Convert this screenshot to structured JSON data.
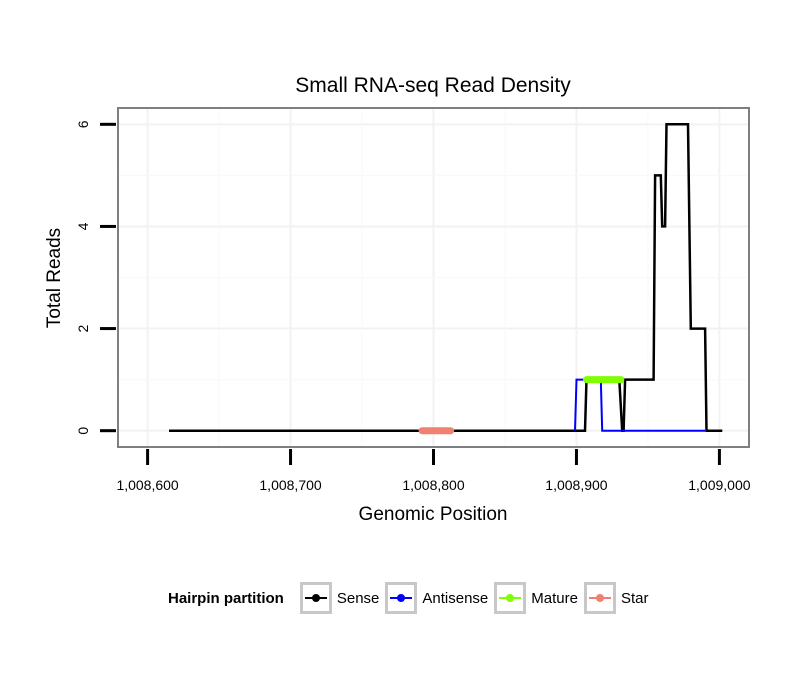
{
  "chart_data": {
    "type": "line",
    "title": "Small RNA-seq Read Density",
    "xlabel": "Genomic Position",
    "ylabel": "Total Reads",
    "xlim": [
      1008580,
      1009020
    ],
    "ylim": [
      -0.3,
      6.3
    ],
    "x_ticks": [
      1008600,
      1008700,
      1008800,
      1008900,
      1009000
    ],
    "x_tick_labels": [
      "1,008,600",
      "1,008,700",
      "1,008,800",
      "1,008,900",
      "1,009,000"
    ],
    "y_ticks": [
      0,
      2,
      4,
      6
    ],
    "y_tick_labels": [
      "0",
      "2",
      "4",
      "6"
    ],
    "grid": true,
    "series": [
      {
        "name": "Sense",
        "color": "#000000",
        "points": [
          [
            1008615,
            0
          ],
          [
            1008906,
            0
          ],
          [
            1008907,
            1
          ],
          [
            1008930,
            1
          ],
          [
            1008932,
            0
          ],
          [
            1008933,
            0
          ],
          [
            1008934,
            1
          ],
          [
            1008954,
            1
          ],
          [
            1008955,
            5
          ],
          [
            1008959,
            5
          ],
          [
            1008960,
            4
          ],
          [
            1008962,
            4
          ],
          [
            1008963,
            6
          ],
          [
            1008978,
            6
          ],
          [
            1008980,
            2
          ],
          [
            1008990,
            2
          ],
          [
            1008991,
            0
          ],
          [
            1009002,
            0
          ]
        ]
      },
      {
        "name": "Antisense",
        "color": "#0000ff",
        "points": [
          [
            1008899,
            0
          ],
          [
            1008900,
            1
          ],
          [
            1008917,
            1
          ],
          [
            1008918,
            0
          ],
          [
            1008990,
            0
          ]
        ]
      },
      {
        "name": "Mature",
        "color": "#7fff00",
        "points": [
          [
            1008907,
            1
          ],
          [
            1008931,
            1
          ]
        ]
      },
      {
        "name": "Star",
        "color": "#f08070",
        "points": [
          [
            1008792,
            0
          ],
          [
            1008812,
            0
          ]
        ]
      }
    ],
    "legend": {
      "title": "Hairpin partition",
      "position": "bottom",
      "entries": [
        "Sense",
        "Antisense",
        "Mature",
        "Star"
      ]
    }
  }
}
